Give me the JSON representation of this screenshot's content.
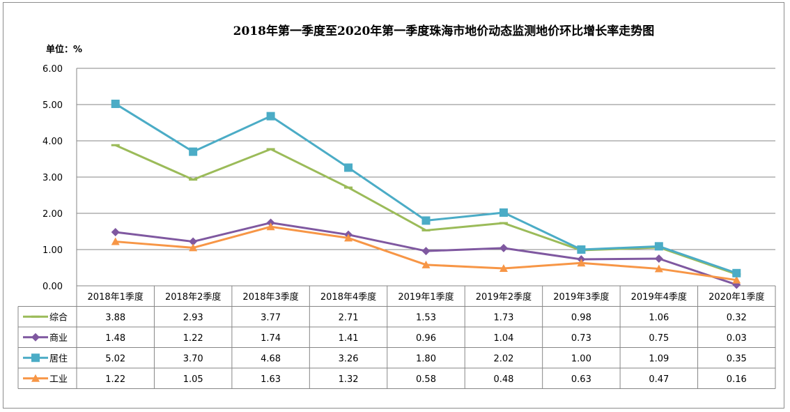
{
  "chart_data": {
    "type": "line",
    "title": "2018年第一季度至2020年第一季度珠海市地价动态监测地价环比增长率走势图",
    "unit_label": "单位：%",
    "categories": [
      "2018年1季度",
      "2018年2季度",
      "2018年3季度",
      "2018年4季度",
      "2019年1季度",
      "2019年2季度",
      "2019年3季度",
      "2019年4季度",
      "2020年1季度"
    ],
    "ylim": [
      0,
      6
    ],
    "y_ticks": [
      "0.00",
      "1.00",
      "2.00",
      "3.00",
      "4.00",
      "5.00",
      "6.00"
    ],
    "grid": true,
    "legend_placement": "data-table",
    "series": [
      {
        "name": "综合",
        "color": "#9bbb59",
        "marker": "dash",
        "values": [
          3.88,
          2.93,
          3.77,
          2.71,
          1.53,
          1.73,
          0.98,
          1.06,
          0.32
        ],
        "labels": [
          "3.88",
          "2.93",
          "3.77",
          "2.71",
          "1.53",
          "1.73",
          "0.98",
          "1.06",
          "0.32"
        ]
      },
      {
        "name": "商业",
        "color": "#7f58a0",
        "marker": "diamond",
        "values": [
          1.48,
          1.22,
          1.74,
          1.41,
          0.96,
          1.04,
          0.73,
          0.75,
          0.03
        ],
        "labels": [
          "1.48",
          "1.22",
          "1.74",
          "1.41",
          "0.96",
          "1.04",
          "0.73",
          "0.75",
          "0.03"
        ]
      },
      {
        "name": "居住",
        "color": "#4bacc6",
        "marker": "square",
        "values": [
          5.02,
          3.7,
          4.68,
          3.26,
          1.8,
          2.02,
          1.0,
          1.09,
          0.35
        ],
        "labels": [
          "5.02",
          "3.70",
          "4.68",
          "3.26",
          "1.80",
          "2.02",
          "1.00",
          "1.09",
          "0.35"
        ]
      },
      {
        "name": "工业",
        "color": "#f79646",
        "marker": "triangle",
        "values": [
          1.22,
          1.05,
          1.63,
          1.32,
          0.58,
          0.48,
          0.63,
          0.47,
          0.16
        ],
        "labels": [
          "1.22",
          "1.05",
          "1.63",
          "1.32",
          "0.58",
          "0.48",
          "0.63",
          "0.47",
          "0.16"
        ]
      }
    ]
  }
}
